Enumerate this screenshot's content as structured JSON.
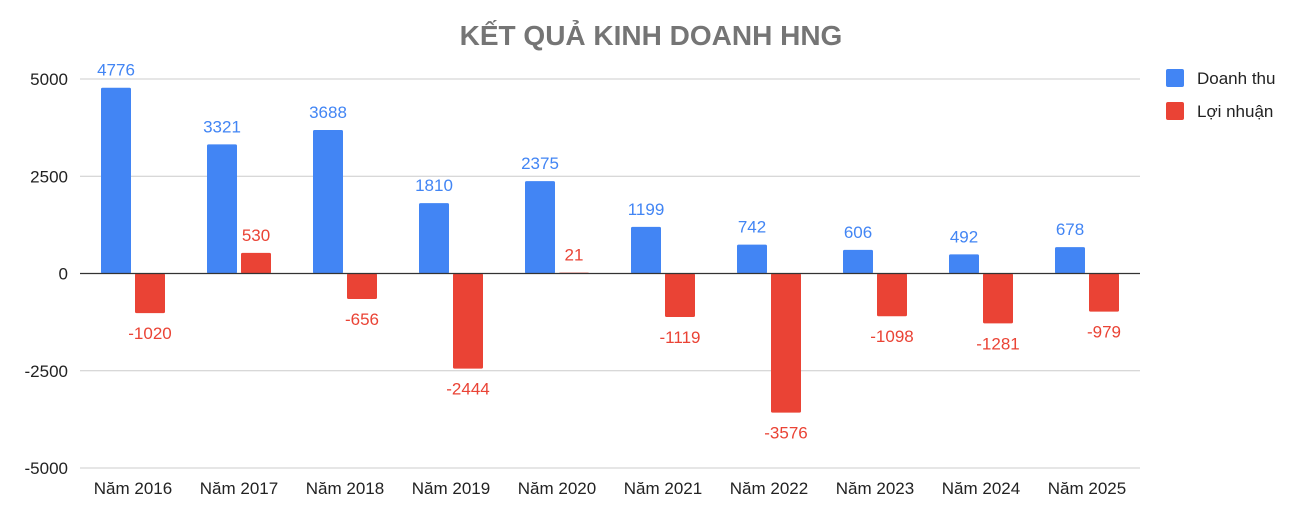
{
  "chart_data": {
    "type": "bar",
    "title": "KẾT QUẢ KINH DOANH HNG",
    "xlabel": "",
    "ylabel": "",
    "categories": [
      "Năm 2016",
      "Năm 2017",
      "Năm 2018",
      "Năm 2019",
      "Năm 2020",
      "Năm 2021",
      "Năm 2022",
      "Năm 2023",
      "Năm 2024",
      "Năm 2025"
    ],
    "series": [
      {
        "name": "Doanh thu",
        "color": "#4285F4",
        "values": [
          4776,
          3321,
          3688,
          1810,
          2375,
          1199,
          742,
          606,
          492,
          678
        ]
      },
      {
        "name": "Lợi nhuận",
        "color": "#EA4335",
        "values": [
          -1020,
          530,
          -656,
          -2444,
          21,
          -1119,
          -3576,
          -1098,
          -1281,
          -979
        ]
      }
    ],
    "ylim": [
      -5000,
      5000
    ],
    "yticks": [
      5000,
      2500,
      0,
      -2500,
      -5000
    ],
    "ytick_labels": [
      "5000",
      "2500",
      "0",
      "-2500",
      "-5000"
    ],
    "grid": true,
    "legend_position": "right",
    "data_labels": true
  }
}
